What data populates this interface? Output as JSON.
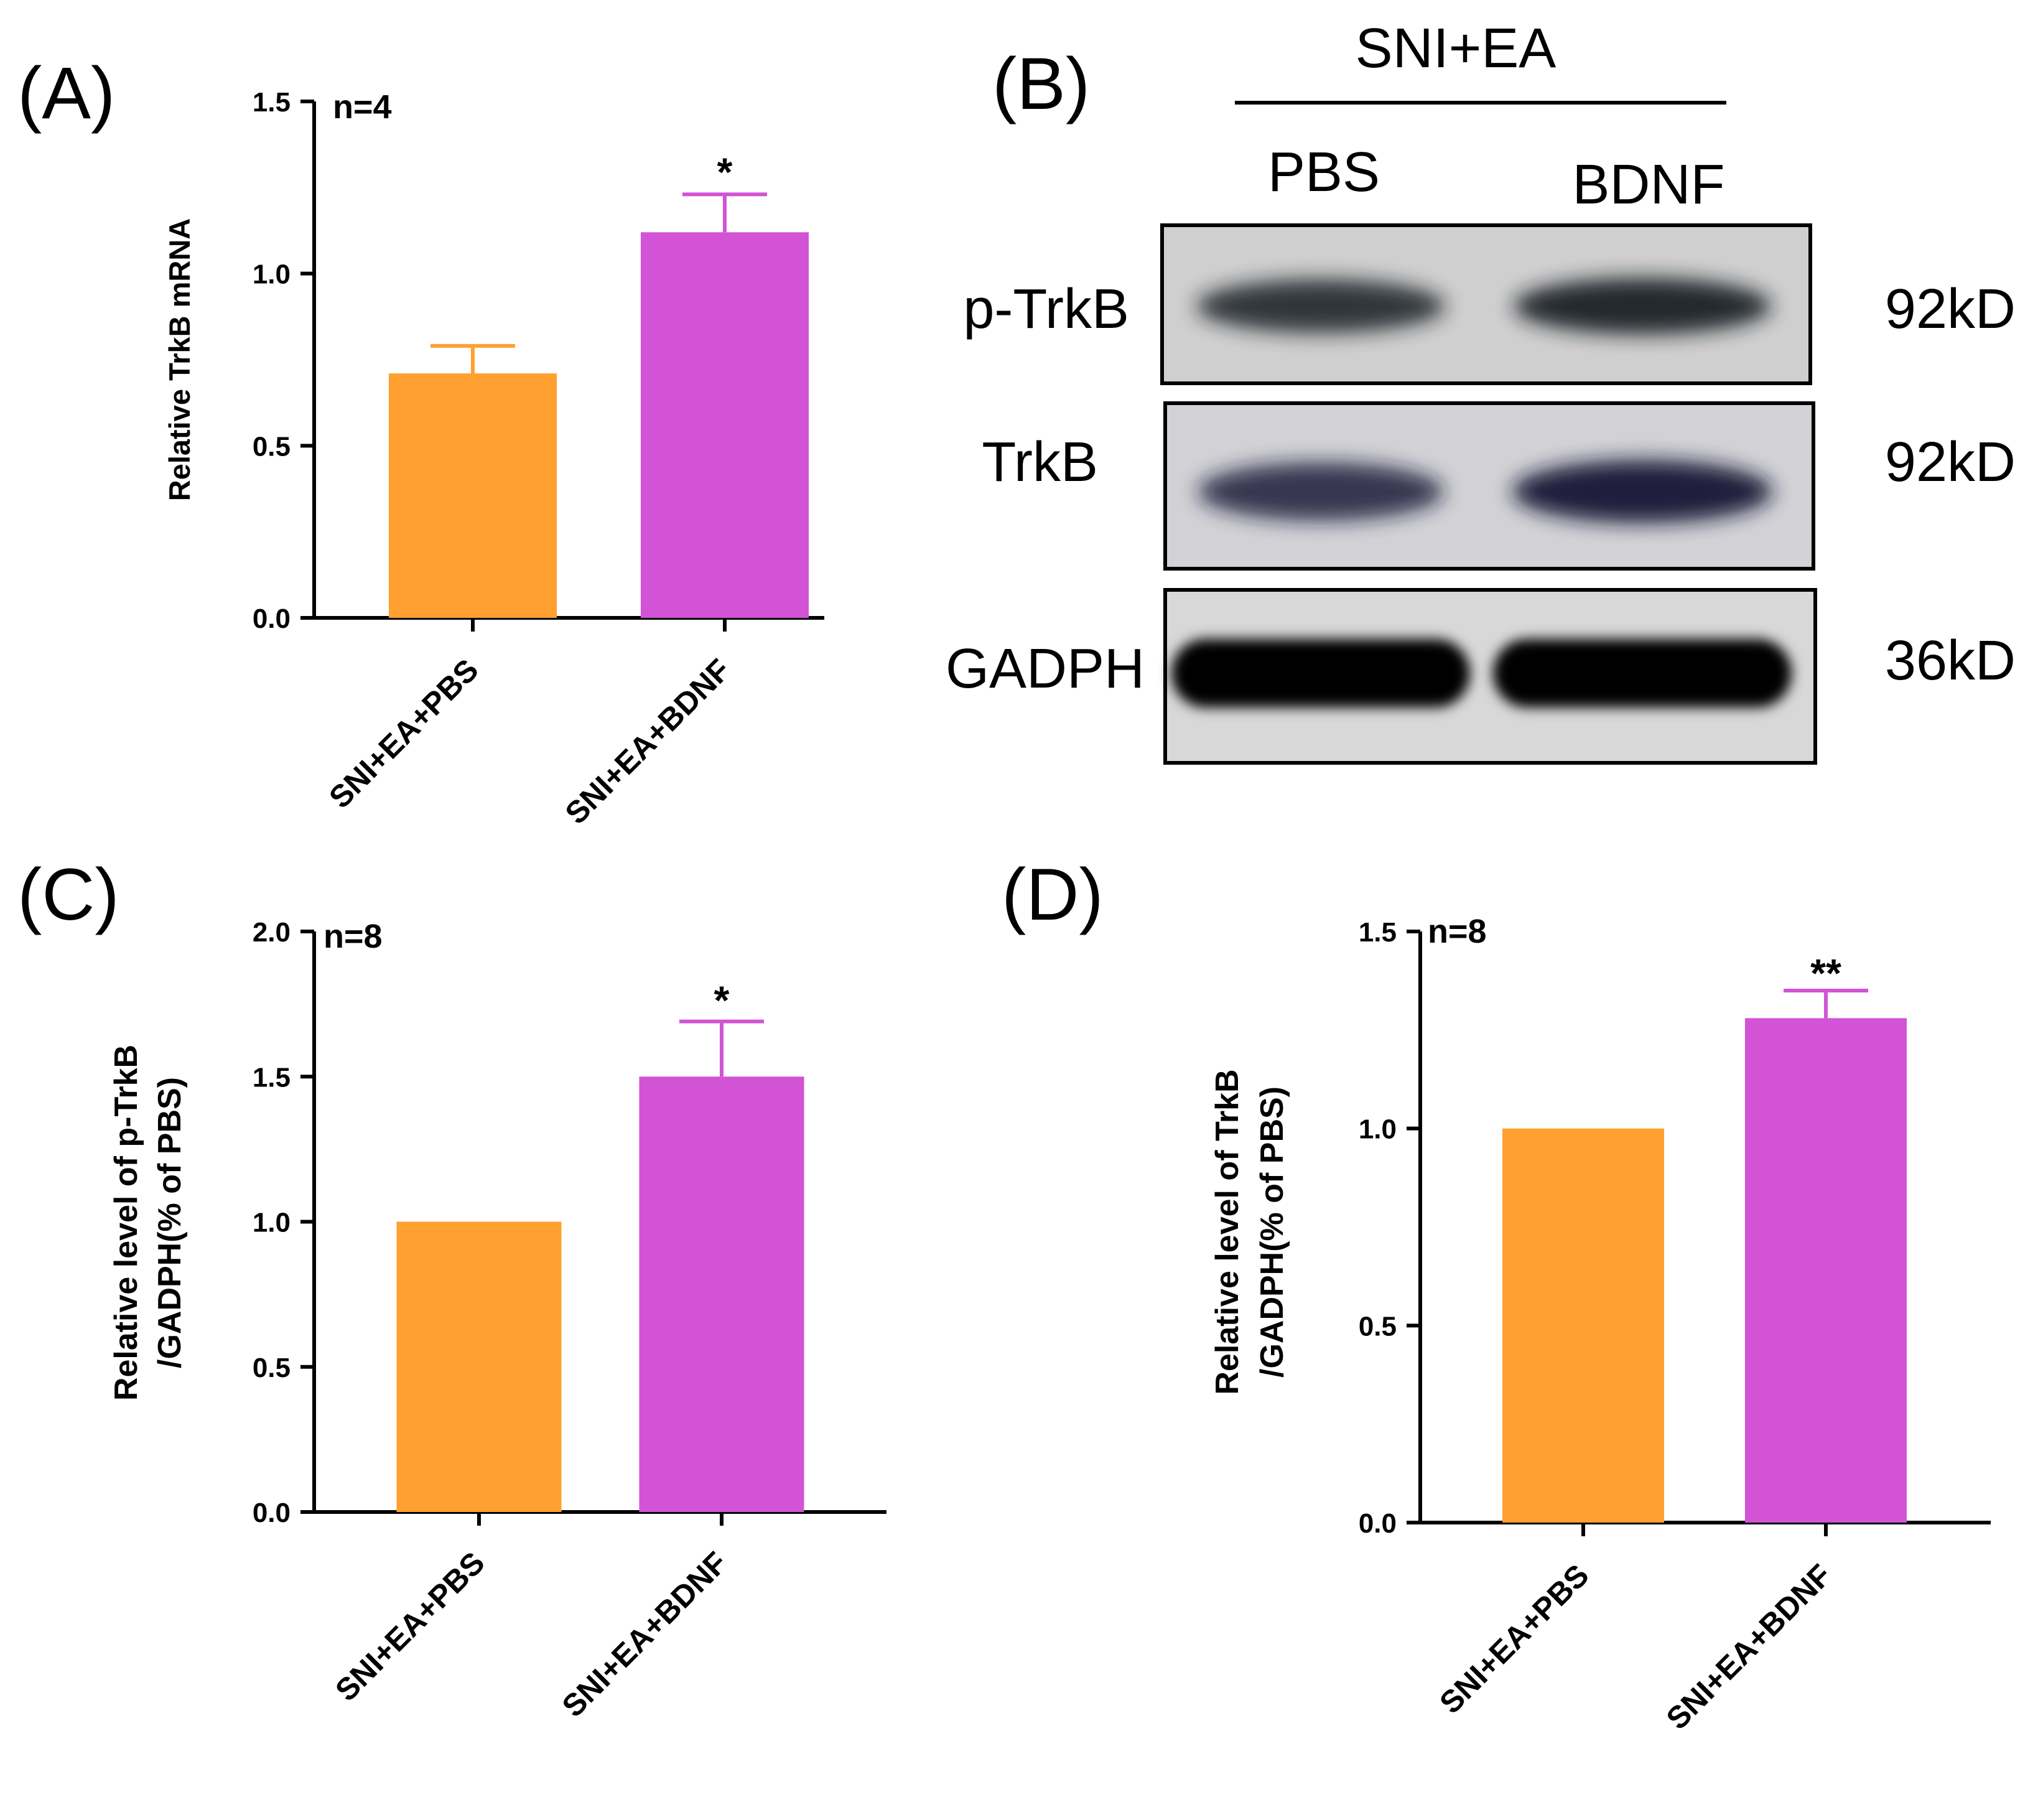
{
  "colors": {
    "pbs": "#FFA030",
    "bdnf": "#D253D6",
    "axis": "#000000"
  },
  "chart_data": [
    {
      "panel": "(A)",
      "type": "bar",
      "categories": [
        "SNI+EA+PBS",
        "SNI+EA+BDNF"
      ],
      "values": [
        0.71,
        1.12
      ],
      "errors": [
        0.08,
        0.11
      ],
      "ylabel": "Relative TrkB mRNA",
      "ylim": [
        0,
        1.5
      ],
      "yticks": [
        "0.0",
        "0.5",
        "1.0",
        "1.5"
      ],
      "n_label": "n=4",
      "significance": [
        "",
        "*"
      ]
    },
    {
      "panel": "(C)",
      "type": "bar",
      "categories": [
        "SNI+EA+PBS",
        "SNI+EA+BDNF"
      ],
      "values": [
        1.0,
        1.5
      ],
      "errors": [
        0,
        0.19
      ],
      "ylabel_lines": [
        "Relative level of p-TrkB",
        "/GADPH(% of PBS)"
      ],
      "ylim": [
        0,
        2.0
      ],
      "yticks": [
        "0.0",
        "0.5",
        "1.0",
        "1.5",
        "2.0"
      ],
      "n_label": "n=8",
      "significance": [
        "",
        "*"
      ]
    },
    {
      "panel": "(D)",
      "type": "bar",
      "categories": [
        "SNI+EA+PBS",
        "SNI+EA+BDNF"
      ],
      "values": [
        1.0,
        1.28
      ],
      "errors": [
        0,
        0.07
      ],
      "ylabel_lines": [
        "Relative level of TrkB",
        "/GADPH(% of PBS)"
      ],
      "ylim": [
        0,
        1.5
      ],
      "yticks": [
        "0.0",
        "0.5",
        "1.0",
        "1.5"
      ],
      "n_label": "n=8",
      "significance": [
        "",
        "**"
      ]
    }
  ],
  "blot": {
    "panel": "(B)",
    "group": "SNI+EA",
    "lanes": [
      "PBS",
      "BDNF"
    ],
    "rows": [
      {
        "protein": "p-TrkB",
        "size": "92kD",
        "intensities": [
          0.8,
          0.95
        ]
      },
      {
        "protein": "TrkB",
        "size": "92kD",
        "intensities": [
          0.75,
          1.0
        ]
      },
      {
        "protein": "GADPH",
        "size": "36kD",
        "intensities": [
          1.0,
          1.0
        ]
      }
    ]
  }
}
